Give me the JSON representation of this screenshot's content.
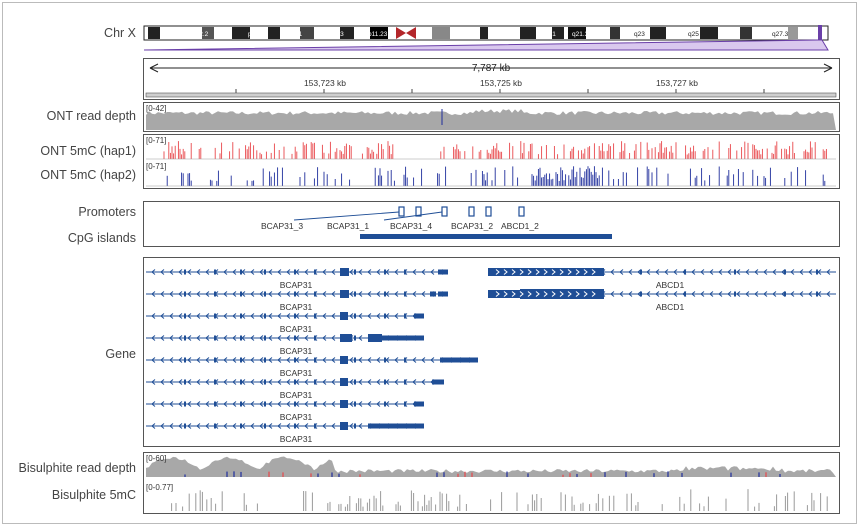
{
  "tracks": {
    "chr": "Chr X",
    "read_depth": "ONT read depth",
    "hap1": "ONT 5mC (hap1)",
    "hap2": "ONT 5mC (hap2)",
    "promoters": "Promoters",
    "cpg": "CpG islands",
    "gene": "Gene",
    "bis_depth": "Bisulphite read depth",
    "bis_5mc": "Bisulphite 5mC"
  },
  "ranges": {
    "read_depth": "[0-42]",
    "hap1": "[0-71]",
    "hap2": "[0-71]",
    "bis_depth": "[0-60]",
    "bis_5mc": "[0-0.77]"
  },
  "ruler": {
    "span": "7,787 kb",
    "ticks": [
      "153,723 kb",
      "153,725 kb",
      "153,727 kb"
    ]
  },
  "ideogram_bands": [
    "p22.2",
    "p21.3",
    "p21.1",
    "p11.3",
    "p11.23",
    "q21.1",
    "q21.31",
    "q21.33",
    "q23",
    "q25",
    "q27.3"
  ],
  "promoters": [
    "BCAP31_3",
    "BCAP31_1",
    "BCAP31_4",
    "BCAP31_2",
    "ABCD1_2"
  ],
  "genes": {
    "left": [
      "BCAP31",
      "BCAP31",
      "BCAP31",
      "BCAP31",
      "BCAP31",
      "BCAP31",
      "BCAP31",
      "BCAP31"
    ],
    "right": [
      "ABCD1",
      "ABCD1"
    ]
  },
  "colors": {
    "hap1": "#e8474b",
    "hap2": "#1f2e9c",
    "gene": "#1f4e96",
    "depth": "#a8a8a8",
    "ideogram_accent": "#6a3fa8"
  }
}
